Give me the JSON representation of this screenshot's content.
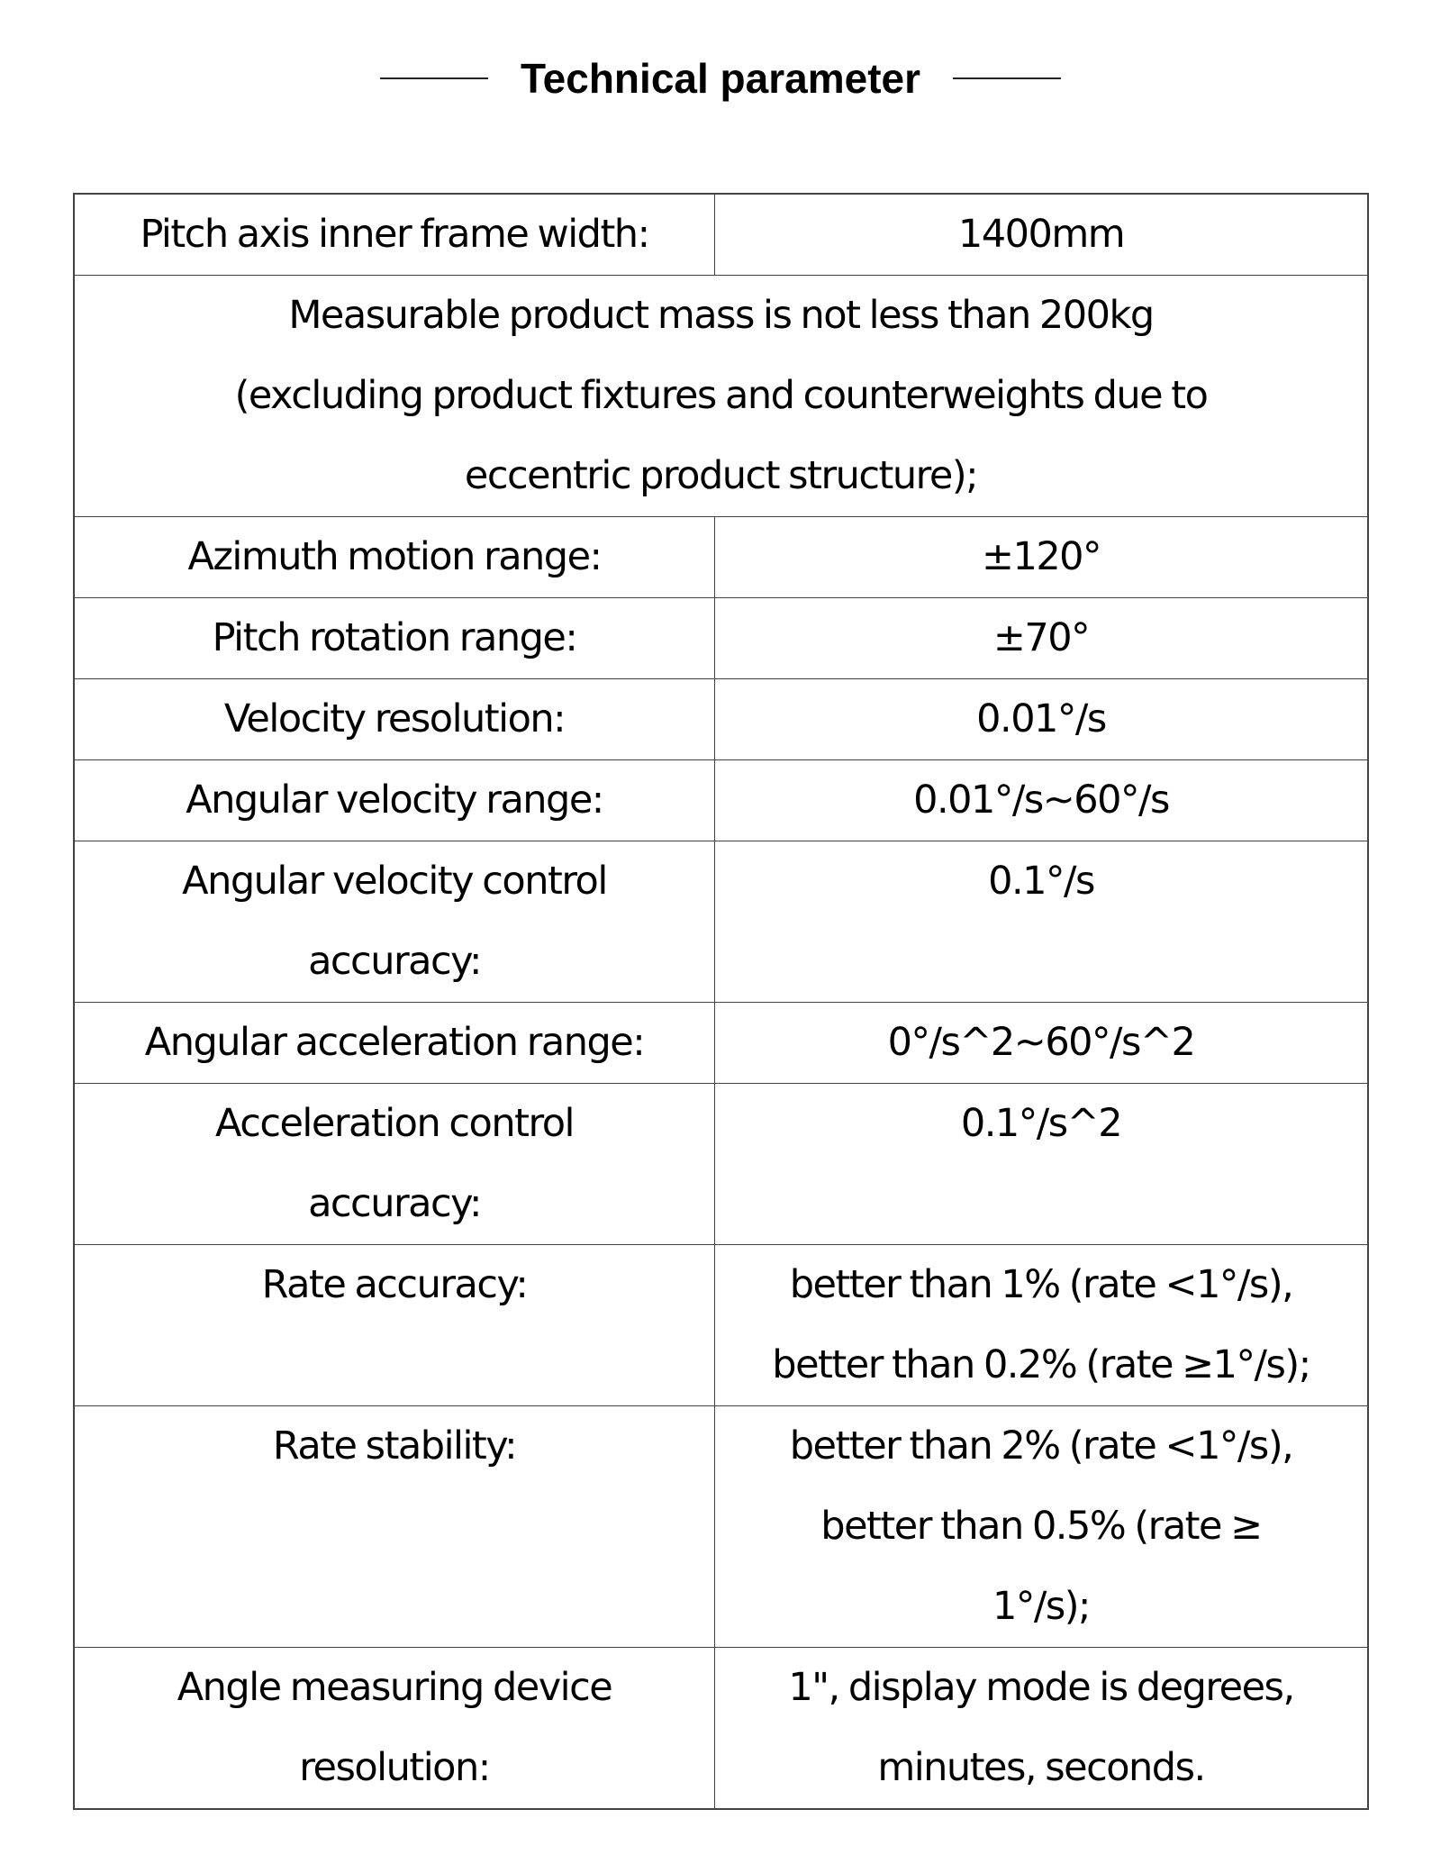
{
  "title": "Technical parameter",
  "rows": [
    {
      "label": [
        "Pitch axis inner frame width:"
      ],
      "value": [
        "1400mm"
      ]
    },
    {
      "full": [
        "Measurable product mass is not less than 200kg",
        "(excluding product fixtures and counterweights due to",
        "eccentric product structure);"
      ]
    },
    {
      "label": [
        "Azimuth motion range:"
      ],
      "value": [
        "±120°"
      ]
    },
    {
      "label": [
        "Pitch rotation range:"
      ],
      "value": [
        "±70°"
      ]
    },
    {
      "label": [
        "Velocity resolution:"
      ],
      "value": [
        "0.01°/s"
      ]
    },
    {
      "label": [
        "Angular velocity range:"
      ],
      "value": [
        "0.01°/s~60°/s"
      ]
    },
    {
      "label": [
        "Angular velocity control",
        "accuracy:"
      ],
      "value": [
        "0.1°/s"
      ]
    },
    {
      "label": [
        "Angular acceleration range:"
      ],
      "value": [
        "0°/s^2~60°/s^2"
      ]
    },
    {
      "label": [
        "Acceleration control",
        "accuracy:"
      ],
      "value": [
        "0.1°/s^2"
      ]
    },
    {
      "label": [
        "Rate accuracy:"
      ],
      "value": [
        "better than 1% (rate <1°/s),",
        "better than 0.2% (rate ≥1°/s);"
      ]
    },
    {
      "label": [
        "Rate stability:"
      ],
      "value": [
        "better than 2% (rate <1°/s),",
        "better than 0.5% (rate ≥",
        "1°/s);"
      ]
    },
    {
      "label": [
        "Angle measuring device",
        "resolution:"
      ],
      "value": [
        "1\", display mode is degrees,",
        "minutes, seconds."
      ]
    }
  ]
}
